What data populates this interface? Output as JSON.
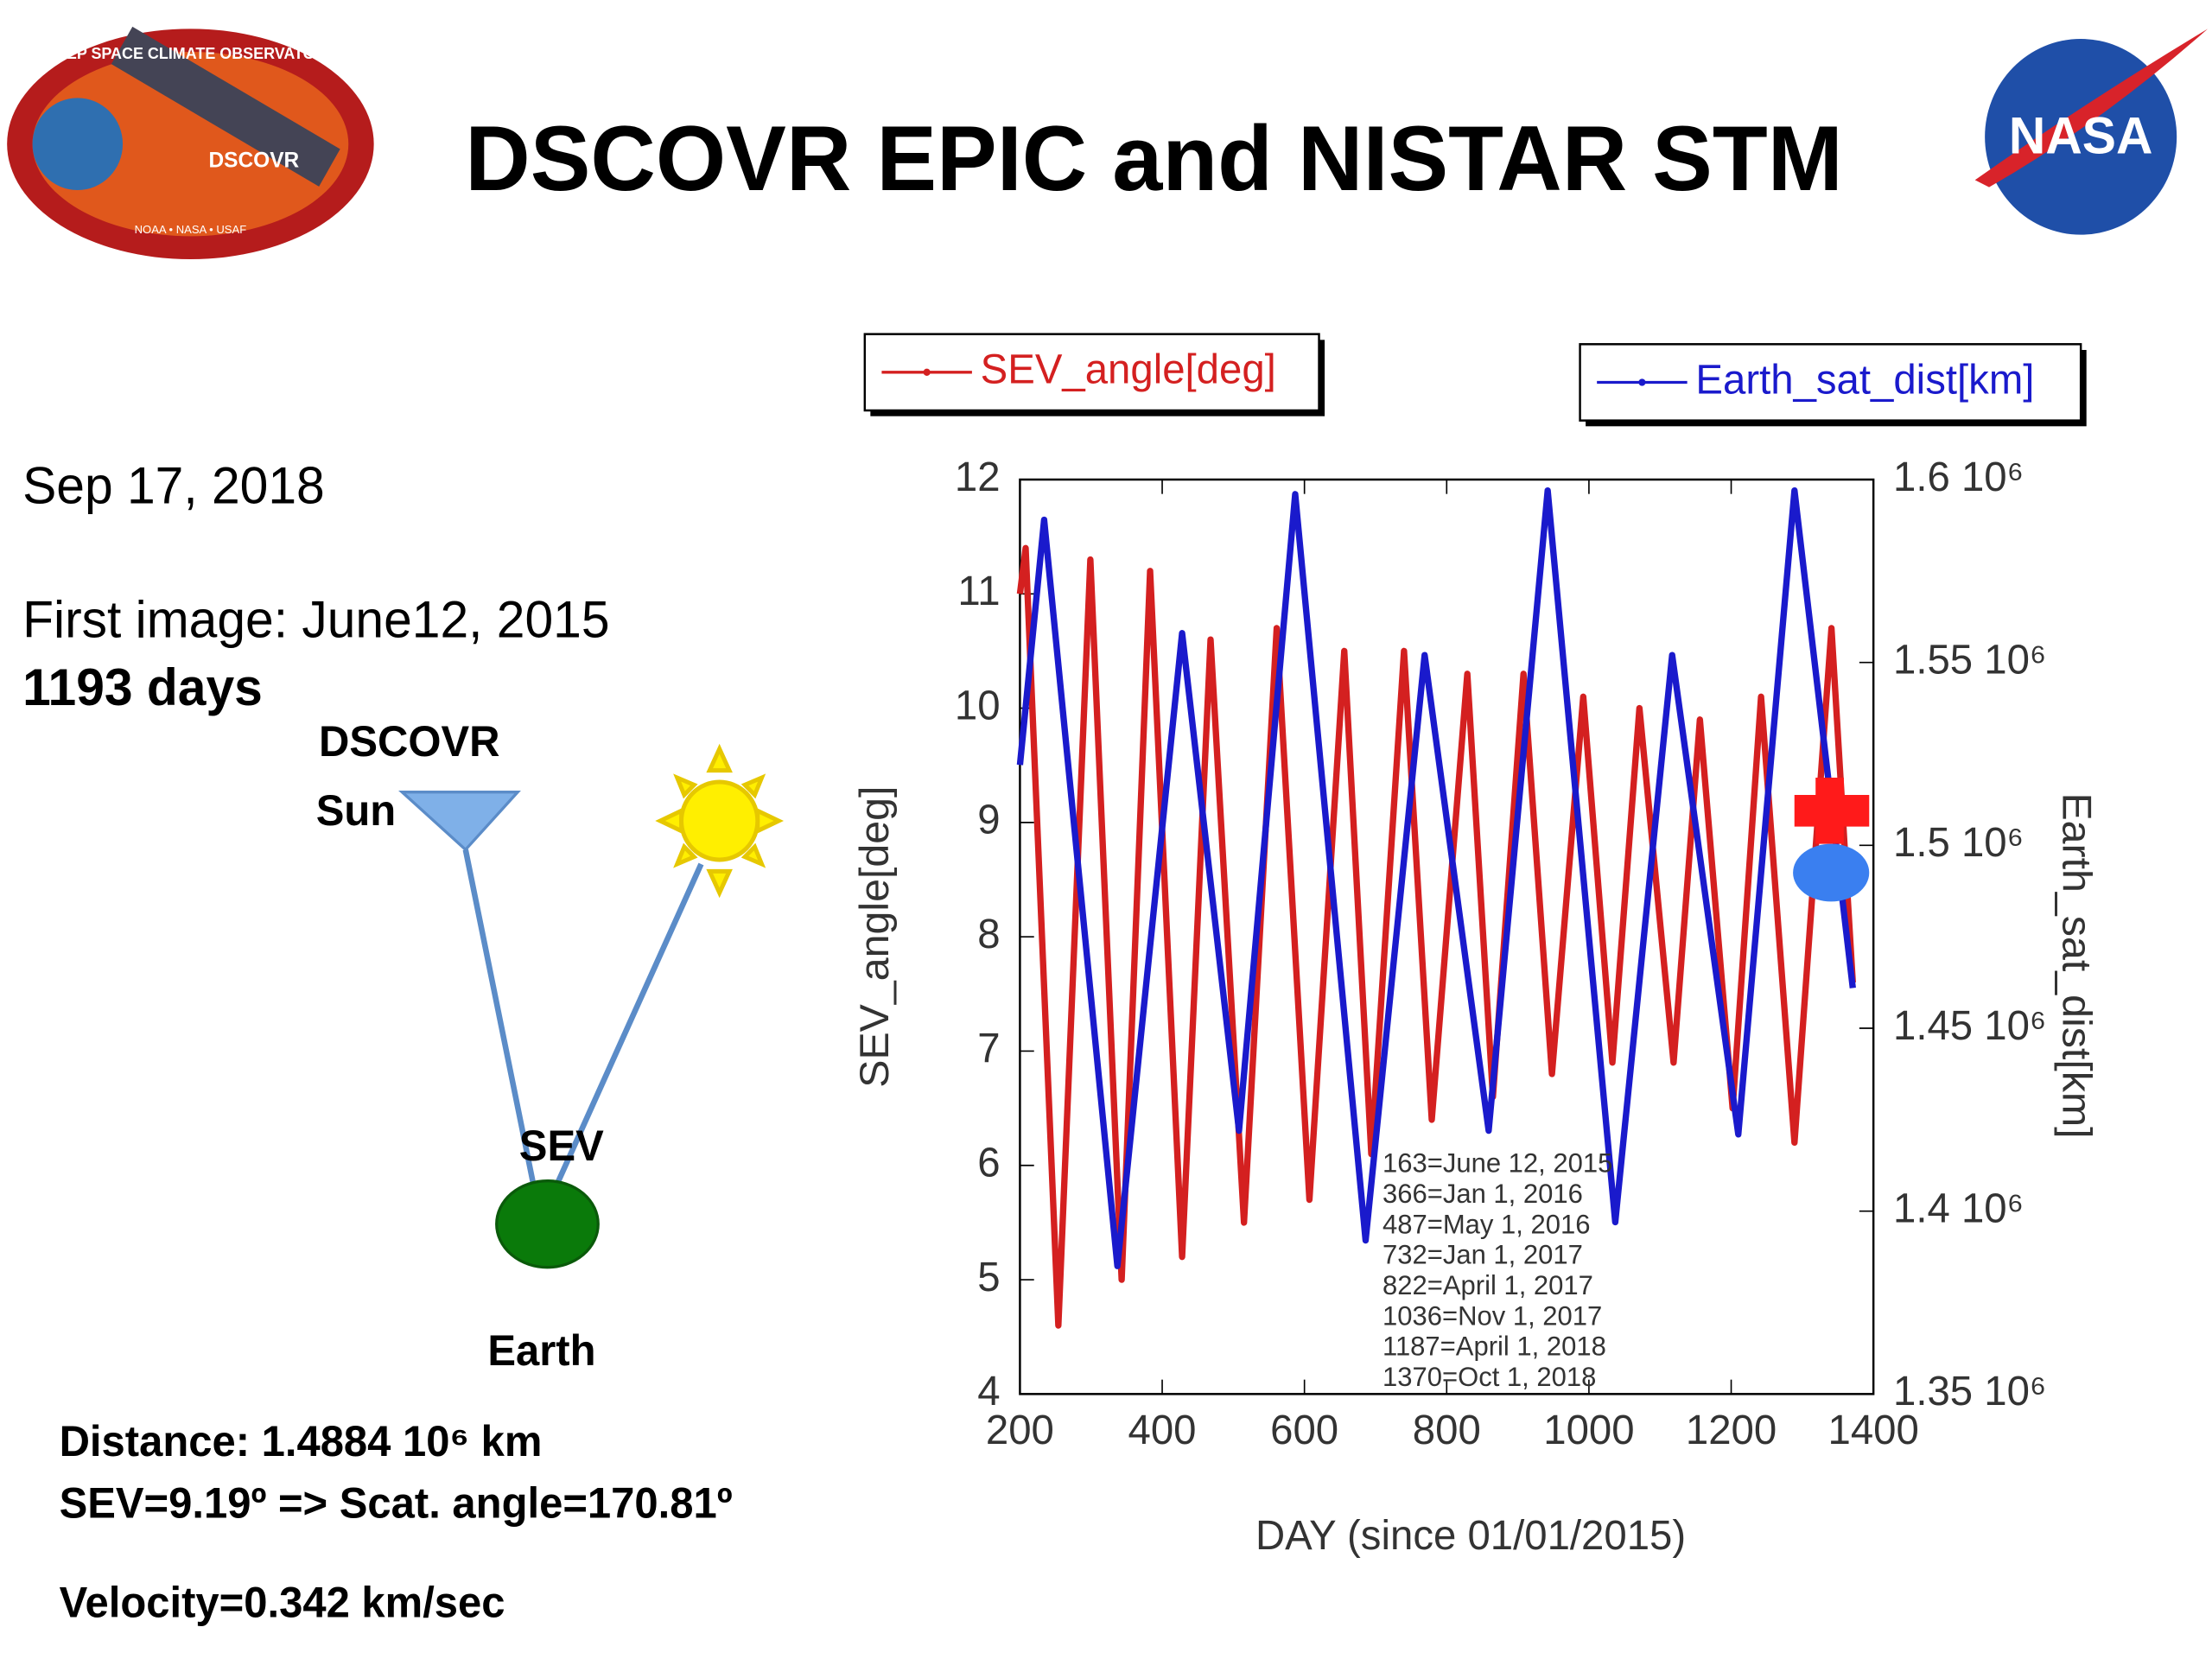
{
  "slide": {
    "title": "DSCOVR EPIC and NISTAR STM",
    "logo_ring": "DEEP SPACE CLIMATE OBSERVATORY",
    "logo_name": "DSCOVR",
    "logo_agencies": "NOAA • NASA • USAF",
    "nasa": "NASA",
    "date": "Sep 17, 2018",
    "first_image": "First image: June12, 2015",
    "days": "1193 days",
    "diagram_dscovr": "DSCOVR",
    "diagram_sun": "Sun",
    "diagram_sev": "SEV",
    "diagram_earth": "Earth",
    "distance": "Distance: 1.4884 10⁶ km",
    "sev": "SEV=9.19º => Scat. angle=170.81º",
    "velocity": "Velocity=0.342 km/sec"
  },
  "chart_data": {
    "type": "line",
    "xlabel": "DAY (since 01/01/2015)",
    "ylabel": "SEV_angle[deg]",
    "y2label": "Earth_sat_dist[km]",
    "xlim": [
      200,
      1400
    ],
    "xticks": [
      200,
      400,
      600,
      800,
      1000,
      1200,
      1400
    ],
    "ylim": [
      4,
      12
    ],
    "yticks": [
      4,
      5,
      6,
      7,
      8,
      9,
      10,
      11,
      12
    ],
    "y2lim": [
      1350000,
      1600000
    ],
    "y2ticks": [
      {
        "value": 1350000,
        "label": "1.35 10⁶"
      },
      {
        "value": 1400000,
        "label": "1.4 10⁶"
      },
      {
        "value": 1450000,
        "label": "1.45 10⁶"
      },
      {
        "value": 1500000,
        "label": "1.5 10⁶"
      },
      {
        "value": 1550000,
        "label": "1.55 10⁶"
      },
      {
        "value": 1600000,
        "label": "1.6 10⁶"
      }
    ],
    "annotations": [
      "163=June 12, 2015",
      "366=Jan 1, 2016",
      "487=May 1, 2016",
      "732=Jan 1, 2017",
      "822=April 1, 2017",
      "1036=Nov 1, 2017",
      "1187=April 1, 2018",
      "1370=Oct 1, 2018"
    ],
    "series": [
      {
        "name": "SEV_angle[deg]",
        "color": "#d42020",
        "x": [
          200,
          208,
          254,
          299,
          343,
          383,
          428,
          468,
          515,
          561,
          607,
          656,
          694,
          740,
          779,
          829,
          865,
          908,
          948,
          992,
          1033,
          1071,
          1119,
          1156,
          1202,
          1242,
          1289,
          1341,
          1371
        ],
        "values": [
          11.0,
          11.4,
          4.6,
          11.3,
          5.0,
          11.2,
          5.2,
          10.6,
          5.5,
          10.7,
          5.7,
          10.5,
          6.1,
          10.5,
          6.4,
          10.3,
          6.6,
          10.3,
          6.8,
          10.1,
          6.9,
          10.0,
          6.9,
          9.9,
          6.5,
          10.1,
          6.2,
          10.7,
          7.6
        ]
      },
      {
        "name": "Earth_sat_dist[km]",
        "color": "#1a1acc",
        "axis": "y2",
        "x": [
          200,
          234,
          337,
          428,
          508,
          587,
          686,
          769,
          859,
          942,
          1037,
          1117,
          1210,
          1289,
          1371
        ],
        "values": [
          1522000,
          1589000,
          1385000,
          1558000,
          1422000,
          1596000,
          1392000,
          1552000,
          1422000,
          1597000,
          1397000,
          1552000,
          1421000,
          1597000,
          1461000
        ]
      }
    ]
  }
}
